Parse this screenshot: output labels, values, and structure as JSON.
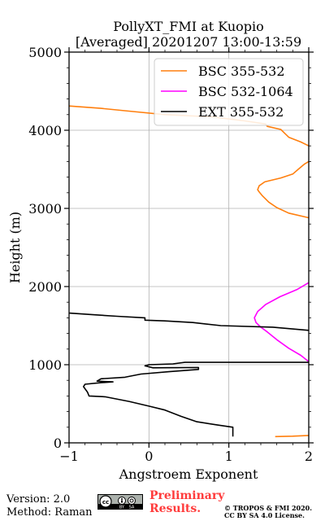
{
  "chart_data": {
    "type": "line",
    "title": "PollyXT_FMI at Kuopio",
    "subtitle": "[Averaged] 20201207 13:00-13:59",
    "xlabel": "Angstroem Exponent",
    "ylabel": "Height (m)",
    "xlim": [
      -1,
      2
    ],
    "ylim": [
      0,
      5000
    ],
    "xticks": [
      "−1",
      "0",
      "1",
      "2"
    ],
    "yticks": [
      "0",
      "1000",
      "2000",
      "3000",
      "4000",
      "5000"
    ],
    "grid": true,
    "legend_position": "top-right",
    "series": [
      {
        "name": "BSC 355-532",
        "color": "#ff7f0e",
        "points": [
          [
            1.58,
            80
          ],
          [
            1.8,
            85
          ],
          [
            2.0,
            95
          ],
          null,
          [
            2.0,
            2880
          ],
          [
            1.75,
            2940
          ],
          [
            1.6,
            3010
          ],
          [
            1.5,
            3080
          ],
          [
            1.42,
            3160
          ],
          [
            1.38,
            3210
          ],
          [
            1.36,
            3240
          ],
          [
            1.38,
            3290
          ],
          [
            1.45,
            3340
          ],
          [
            1.65,
            3390
          ],
          [
            1.8,
            3440
          ],
          [
            1.88,
            3510
          ],
          [
            1.95,
            3570
          ],
          [
            2.0,
            3600
          ],
          null,
          [
            2.0,
            3800
          ],
          [
            1.9,
            3850
          ],
          [
            1.75,
            3910
          ],
          [
            1.7,
            3960
          ],
          [
            1.65,
            4010
          ],
          [
            1.48,
            4050
          ],
          [
            1.46,
            4080
          ],
          [
            1.2,
            4120
          ],
          [
            0.8,
            4170
          ],
          [
            0.2,
            4200
          ],
          [
            -0.2,
            4240
          ],
          [
            -0.6,
            4280
          ],
          [
            -1.0,
            4310
          ]
        ]
      },
      {
        "name": "BSC 532-1064",
        "color": "#ff00ff",
        "points": [
          [
            2.0,
            1040
          ],
          [
            1.9,
            1120
          ],
          [
            1.75,
            1210
          ],
          [
            1.6,
            1320
          ],
          [
            1.48,
            1420
          ],
          [
            1.4,
            1480
          ],
          [
            1.34,
            1540
          ],
          [
            1.32,
            1600
          ],
          [
            1.36,
            1680
          ],
          [
            1.46,
            1770
          ],
          [
            1.64,
            1870
          ],
          [
            1.85,
            1960
          ],
          [
            2.0,
            2050
          ]
        ]
      },
      {
        "name": "EXT 355-532",
        "color": "#000000",
        "points": [
          [
            1.05,
            80
          ],
          [
            1.05,
            200
          ],
          [
            0.85,
            230
          ],
          [
            0.6,
            270
          ],
          [
            0.4,
            340
          ],
          [
            0.2,
            420
          ],
          [
            0.0,
            470
          ],
          [
            -0.25,
            530
          ],
          [
            -0.55,
            590
          ],
          [
            -0.75,
            600
          ],
          [
            -0.77,
            650
          ],
          [
            -0.82,
            720
          ],
          [
            -0.8,
            750
          ],
          [
            -0.6,
            770
          ],
          [
            -0.45,
            780
          ],
          [
            -0.65,
            790
          ],
          [
            -0.6,
            820
          ],
          [
            -0.3,
            840
          ],
          [
            -0.25,
            850
          ],
          [
            -0.1,
            880
          ],
          [
            0.25,
            910
          ],
          [
            0.62,
            940
          ],
          [
            0.62,
            965
          ],
          [
            0.05,
            960
          ],
          [
            -0.05,
            985
          ],
          [
            0.0,
            1000
          ],
          [
            0.3,
            1010
          ],
          [
            0.45,
            1030
          ],
          [
            2.0,
            1030
          ],
          null,
          [
            2.0,
            1440
          ],
          [
            1.55,
            1480
          ],
          [
            0.9,
            1500
          ],
          [
            0.55,
            1540
          ],
          [
            0.2,
            1560
          ],
          [
            -0.05,
            1570
          ],
          [
            -0.05,
            1600
          ],
          [
            -0.4,
            1620
          ],
          [
            -0.7,
            1640
          ],
          [
            -1.0,
            1660
          ]
        ]
      }
    ]
  },
  "footer": {
    "version": "Version: 2.0",
    "method": "Method: Raman",
    "license_badge": "cc by sa",
    "preliminary": "Preliminary\nResults.",
    "copyright_line1": "© TROPOS & FMI 2020.",
    "copyright_line2": "CC BY SA 4.0 License."
  }
}
